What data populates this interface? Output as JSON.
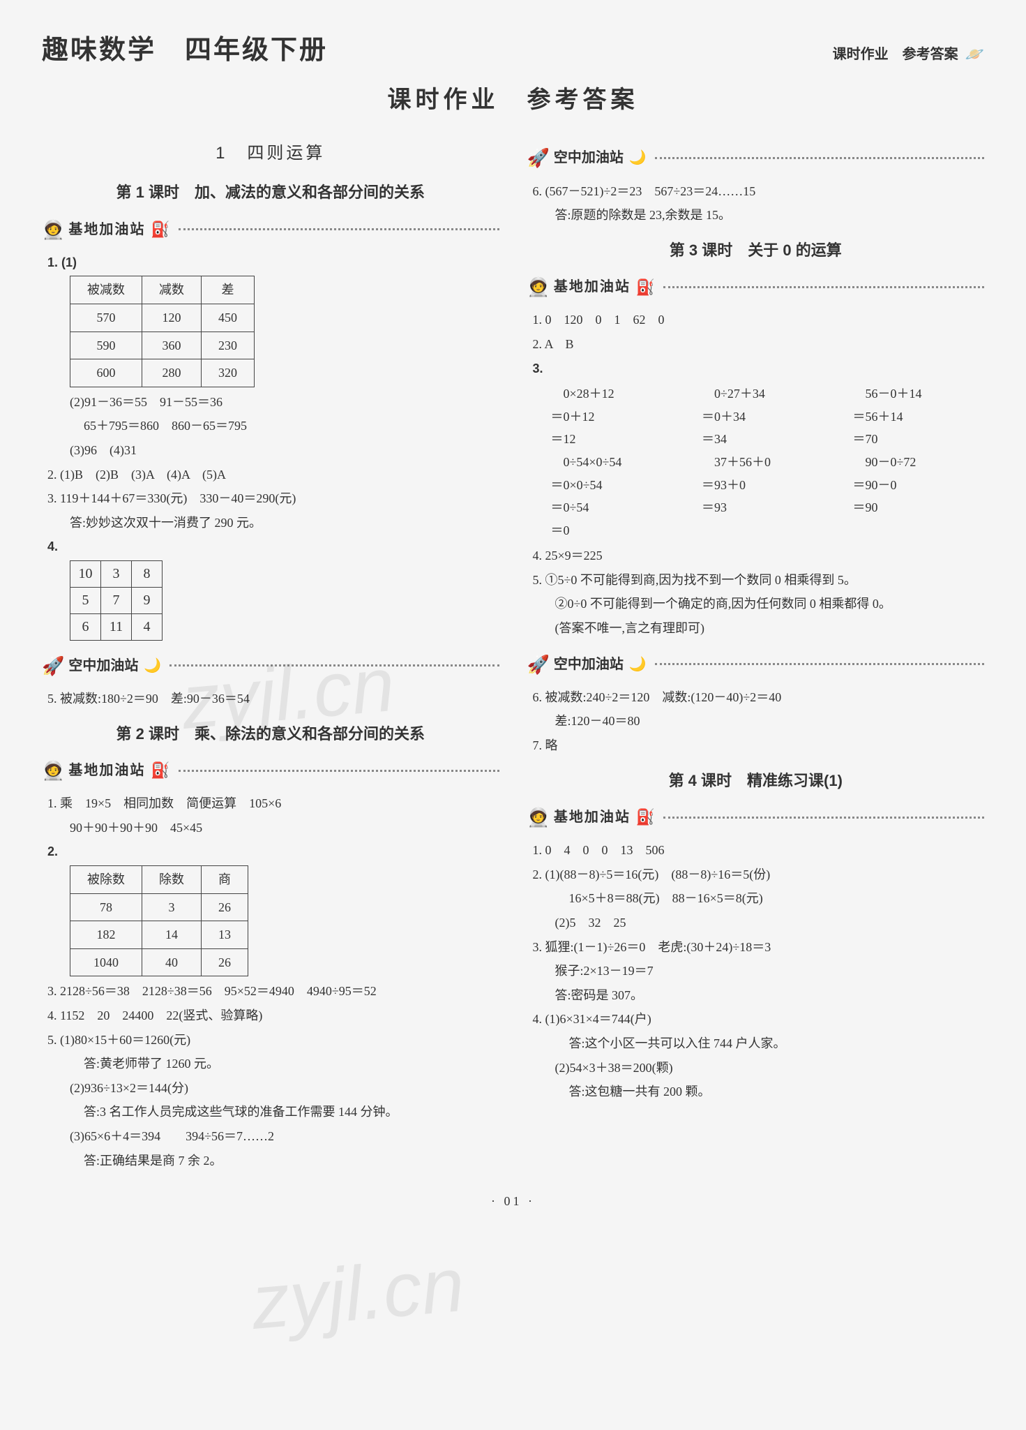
{
  "header": {
    "main_title": "趣味数学　四年级下册",
    "right_small": "课时作业　参考答案",
    "big_subtitle": "课时作业　参考答案"
  },
  "chapter": "1　四则运算",
  "watermark": "zyjl.cn",
  "page_footer": "· 01 ·",
  "left": {
    "lesson1_title": "第 1 课时　加、减法的意义和各部分间的关系",
    "base_station": "基地加油站",
    "air_station": "空中加油站",
    "t1_headers": [
      "被减数",
      "减数",
      "差"
    ],
    "t1_rows": [
      [
        "570",
        "120",
        "450"
      ],
      [
        "590",
        "360",
        "230"
      ],
      [
        "600",
        "280",
        "320"
      ]
    ],
    "q1_prefix": "1. (1)",
    "q1_2": "(2)91－36＝55　91－55＝36",
    "q1_2b": "65＋795＝860　860－65＝795",
    "q1_3": "(3)96　(4)31",
    "q2": "2. (1)B　(2)B　(3)A　(4)A　(5)A",
    "q3": "3. 119＋144＋67＝330(元)　330－40＝290(元)",
    "q3b": "答:妙妙这次双十一消费了 290 元。",
    "q4_prefix": "4.",
    "q4_grid": [
      [
        "10",
        "3",
        "8"
      ],
      [
        "5",
        "7",
        "9"
      ],
      [
        "6",
        "11",
        "4"
      ]
    ],
    "q5": "5. 被减数:180÷2＝90　差:90－36＝54",
    "lesson2_title": "第 2 课时　乘、除法的意义和各部分间的关系",
    "l2_q1": "1. 乘　19×5　相同加数　简便运算　105×6",
    "l2_q1b": "90＋90＋90＋90　45×45",
    "l2_q2_prefix": "2.",
    "t2_headers": [
      "被除数",
      "除数",
      "商"
    ],
    "t2_rows": [
      [
        "78",
        "3",
        "26"
      ],
      [
        "182",
        "14",
        "13"
      ],
      [
        "1040",
        "40",
        "26"
      ]
    ],
    "l2_q3": "3. 2128÷56＝38　2128÷38＝56　95×52＝4940　4940÷95＝52",
    "l2_q4": "4. 1152　20　24400　22(竖式、验算略)",
    "l2_q5_1": "5. (1)80×15＋60＝1260(元)",
    "l2_q5_1a": "答:黄老师带了 1260 元。",
    "l2_q5_2": "(2)936÷13×2＝144(分)",
    "l2_q5_2a": "答:3 名工作人员完成这些气球的准备工作需要 144 分钟。",
    "l2_q5_3": "(3)65×6＋4＝394　　394÷56＝7……2",
    "l2_q5_3a": "答:正确结果是商 7 余 2。"
  },
  "right": {
    "air_station": "空中加油站",
    "base_station": "基地加油站",
    "top_q6": "6. (567－521)÷2＝23　567÷23＝24……15",
    "top_q6a": "答:原题的除数是 23,余数是 15。",
    "lesson3_title": "第 3 课时　关于 0 的运算",
    "l3_q1": "1. 0　120　0　1　62　0",
    "l3_q2": "2. A　B",
    "l3_q3_prefix": "3.",
    "calc": {
      "col1": [
        "　0×28＋12",
        "＝0＋12",
        "＝12",
        "　0÷54×0÷54",
        "＝0×0÷54",
        "＝0÷54",
        "＝0"
      ],
      "col2": [
        "　0÷27＋34",
        "＝0＋34",
        "＝34",
        "　37＋56＋0",
        "＝93＋0",
        "＝93",
        ""
      ],
      "col3": [
        "　56－0＋14",
        "＝56＋14",
        "＝70",
        "　90－0÷72",
        "＝90－0",
        "＝90",
        ""
      ]
    },
    "l3_q4": "4. 25×9＝225",
    "l3_q5_1": "5. ①5÷0 不可能得到商,因为找不到一个数同 0 相乘得到 5。",
    "l3_q5_2": "②0÷0 不可能得到一个确定的商,因为任何数同 0 相乘都得 0。",
    "l3_q5_3": "(答案不唯一,言之有理即可)",
    "l3_q6": "6. 被减数:240÷2＝120　减数:(120－40)÷2＝40",
    "l3_q6b": "差:120－40＝80",
    "l3_q7": "7. 略",
    "lesson4_title": "第 4 课时　精准练习课(1)",
    "l4_q1": "1. 0　4　0　0　13　506",
    "l4_q2_1": "2. (1)(88－8)÷5＝16(元)　(88－8)÷16＝5(份)",
    "l4_q2_1b": "16×5＋8＝88(元)　88－16×5＝8(元)",
    "l4_q2_2": "(2)5　32　25",
    "l4_q3_1": "3. 狐狸:(1－1)÷26＝0　老虎:(30＋24)÷18＝3",
    "l4_q3_2": "猴子:2×13－19＝7",
    "l4_q3_3": "答:密码是 307。",
    "l4_q4_1": "4. (1)6×31×4＝744(户)",
    "l4_q4_1a": "答:这个小区一共可以入住 744 户人家。",
    "l4_q4_2": "(2)54×3＋38＝200(颗)",
    "l4_q4_2a": "答:这包糖一共有 200 颗。"
  }
}
